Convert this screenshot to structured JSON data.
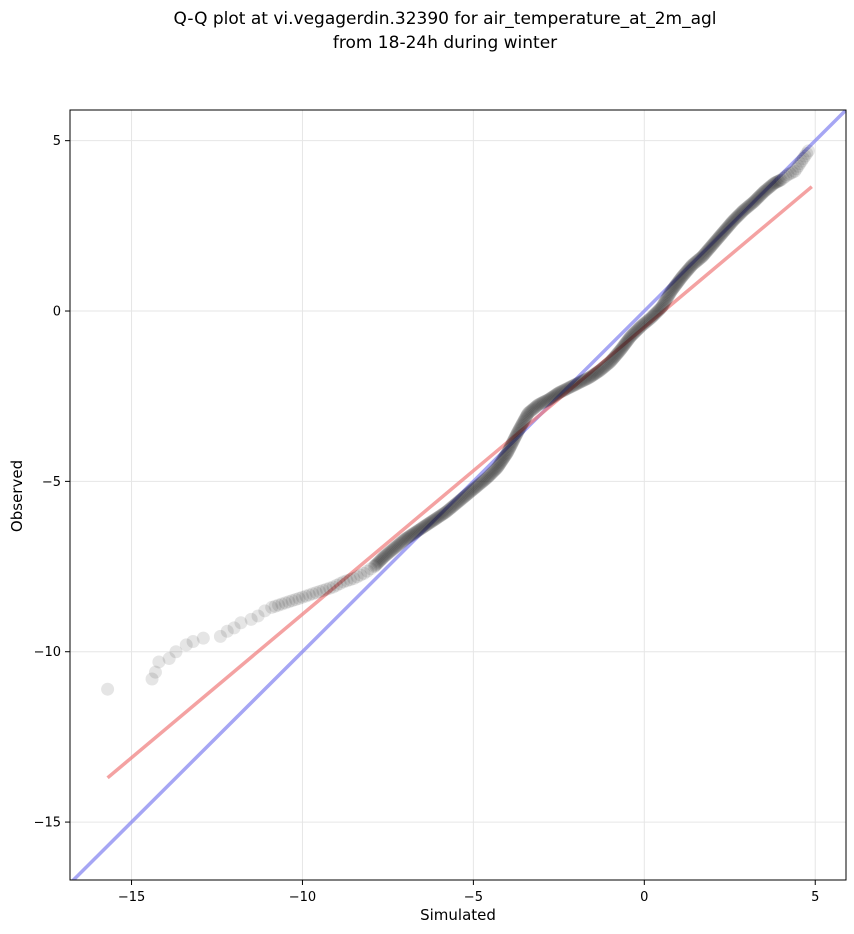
{
  "chart_data": {
    "type": "scatter",
    "title": [
      "Q-Q plot at vi.vegagerdin.32390 for air_temperature_at_2m_agl",
      "from 18-24h during winter"
    ],
    "xlabel": "Simulated",
    "ylabel": "Observed",
    "xlim": [
      -16.8,
      5.9
    ],
    "ylim": [
      -16.7,
      5.9
    ],
    "grid": true,
    "xticks": [
      -15,
      -10,
      -5,
      0,
      5
    ],
    "xtick_labels": [
      "−15",
      "−10",
      "−5",
      "0",
      "5"
    ],
    "yticks": [
      5,
      0,
      -5,
      -10,
      -15
    ],
    "ytick_labels": [
      "5",
      "0",
      "−5",
      "−10",
      "−15"
    ],
    "colors": {
      "points": "#000000",
      "identity_line": "#8080f0",
      "fit_line": "#f07a7a",
      "grid": "#e6e6e6"
    },
    "identity_line": {
      "x": [
        -16.8,
        5.9
      ],
      "y": [
        -16.8,
        5.9
      ]
    },
    "fit_line": {
      "x": [
        -15.7,
        4.9
      ],
      "y": [
        -13.7,
        3.65
      ]
    },
    "series": [
      {
        "x": [
          -15.7,
          -14.4,
          -14.3,
          -14.2,
          -13.9,
          -13.7,
          -13.4,
          -13.2,
          -12.9,
          -12.4,
          -12.2,
          -12.0,
          -11.8,
          -11.5,
          -11.3,
          -11.1,
          -10.9,
          -10.6,
          -10.3,
          -10.0,
          -9.7,
          -9.4,
          -9.1,
          -8.8,
          -8.5,
          -8.2,
          -7.9,
          -7.6,
          -7.3,
          -7.0,
          -6.7,
          -6.4,
          -6.1,
          -5.8,
          -5.5,
          -5.2,
          -4.9,
          -4.6,
          -4.3,
          -4.0,
          -3.7,
          -3.4,
          -3.1,
          -2.8,
          -2.5,
          -2.2,
          -1.9,
          -1.6,
          -1.3,
          -1.0,
          -0.7,
          -0.4,
          -0.1,
          0.2,
          0.5,
          0.8,
          1.1,
          1.4,
          1.7,
          2.0,
          2.3,
          2.6,
          2.9,
          3.2,
          3.5,
          3.8,
          4.0,
          4.2,
          4.4,
          4.5,
          4.6,
          4.7,
          4.8
        ],
        "y": [
          -11.1,
          -10.8,
          -10.6,
          -10.3,
          -10.2,
          -10.0,
          -9.8,
          -9.7,
          -9.6,
          -9.55,
          -9.4,
          -9.3,
          -9.15,
          -9.05,
          -8.95,
          -8.8,
          -8.7,
          -8.6,
          -8.5,
          -8.4,
          -8.3,
          -8.2,
          -8.1,
          -7.95,
          -7.85,
          -7.7,
          -7.5,
          -7.2,
          -6.95,
          -6.7,
          -6.5,
          -6.3,
          -6.1,
          -5.9,
          -5.65,
          -5.4,
          -5.15,
          -4.9,
          -4.6,
          -4.15,
          -3.55,
          -3.0,
          -2.75,
          -2.6,
          -2.4,
          -2.25,
          -2.1,
          -1.95,
          -1.75,
          -1.5,
          -1.15,
          -0.75,
          -0.45,
          -0.2,
          0.1,
          0.6,
          1.0,
          1.35,
          1.6,
          1.95,
          2.3,
          2.65,
          2.95,
          3.2,
          3.5,
          3.75,
          3.85,
          4.0,
          4.1,
          4.25,
          4.4,
          4.55,
          4.7
        ]
      }
    ]
  }
}
